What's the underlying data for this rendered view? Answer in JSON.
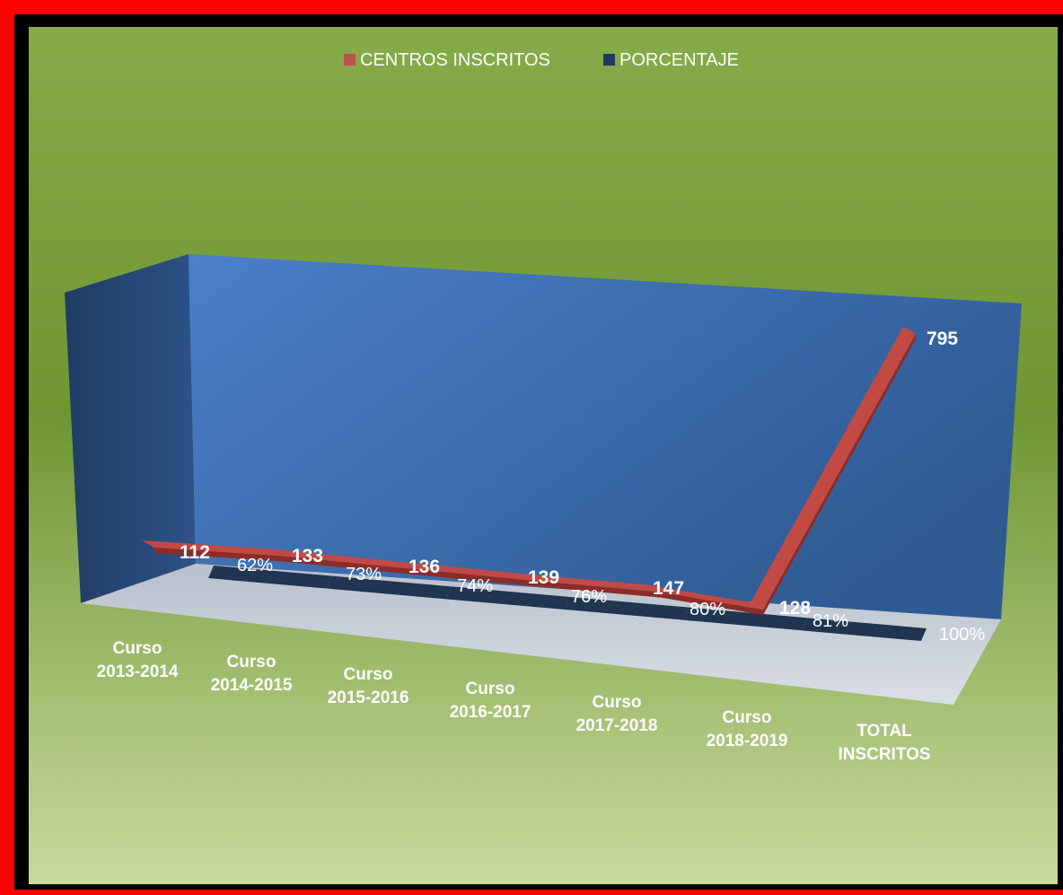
{
  "colors": {
    "outer_border": "#ff0000",
    "inner_border": "#000000",
    "bg_top": "#7aa13a",
    "bg_bottom": "#c5d89c",
    "wall": "#3d6aa8",
    "series_centros": "#b8403a",
    "series_porcentaje": "#1f3550",
    "label_light": "#ffffff"
  },
  "legend": {
    "items": [
      {
        "label": "CENTROS INSCRITOS",
        "color": "#c0504d"
      },
      {
        "label": "PORCENTAJE",
        "color": "#1f3864"
      }
    ]
  },
  "chart_data": {
    "type": "line",
    "style": "3d-line",
    "categories": [
      [
        "Curso",
        "2013-2014"
      ],
      [
        "Curso",
        "2014-2015"
      ],
      [
        "Curso",
        "2015-2016"
      ],
      [
        "Curso",
        "2016-2017"
      ],
      [
        "Curso",
        "2017-2018"
      ],
      [
        "Curso",
        "2018-2019"
      ],
      [
        "TOTAL",
        "INSCRITOS"
      ]
    ],
    "series": [
      {
        "name": "CENTROS INSCRITOS",
        "values": [
          112,
          133,
          136,
          139,
          147,
          128,
          795
        ],
        "labels": [
          "112",
          "133",
          "136",
          "139",
          "147",
          "128",
          "795"
        ]
      },
      {
        "name": "PORCENTAJE",
        "values": [
          62,
          73,
          74,
          76,
          80,
          81,
          100
        ],
        "labels": [
          "62%",
          "73%",
          "74%",
          "76%",
          "80%",
          "81%",
          "100%"
        ]
      }
    ],
    "legend_position": "top",
    "grid": false
  }
}
